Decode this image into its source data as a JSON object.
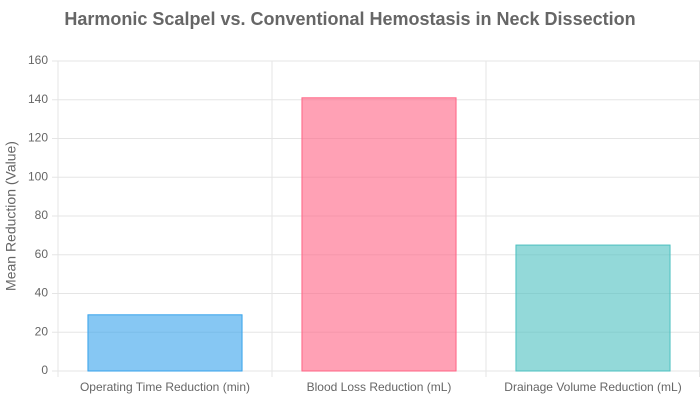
{
  "chart_data": {
    "type": "bar",
    "title": "Harmonic Scalpel vs. Conventional Hemostasis in Neck Dissection",
    "y_label": "Mean Reduction (Value)",
    "categories": [
      "Operating Time Reduction (min)",
      "Blood Loss Reduction (mL)",
      "Drainage Volume Reduction (mL)"
    ],
    "values": [
      29,
      141,
      65
    ],
    "colors": [
      "#36a2eb",
      "#ff6384",
      "#4bc0c0"
    ],
    "ylim": [
      0,
      160
    ],
    "yticks": [
      0,
      20,
      40,
      60,
      80,
      100,
      120,
      140,
      160
    ],
    "grid": true
  }
}
